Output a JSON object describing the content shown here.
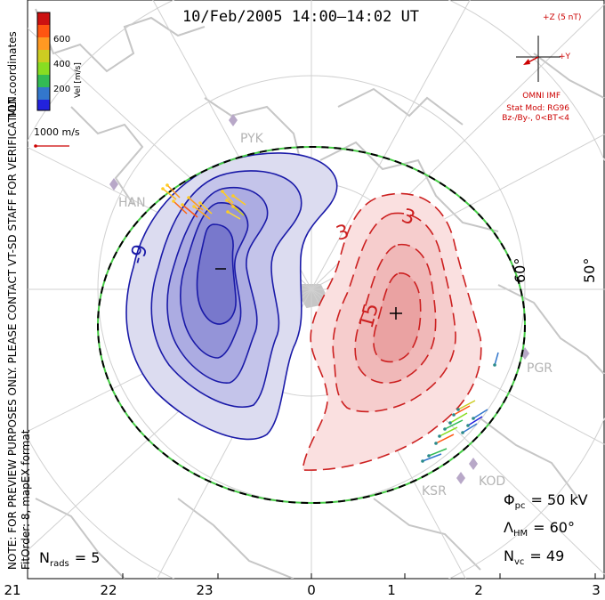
{
  "title": "10/Feb/2005 14:00–14:02 UT",
  "legend": {
    "title": "Vel [m/s]",
    "ticks": [
      "600",
      "400",
      "200"
    ],
    "colors": [
      "#cc1111",
      "#ff5511",
      "#ff9922",
      "#cccc22",
      "#88dd22",
      "#33bb55",
      "#3377cc",
      "#2222dd"
    ]
  },
  "mlt_label": "MLT coordinates",
  "scale_label": "1000 m/s",
  "side_note": "NOTE: FOR PREVIEW PURPOSES ONLY. PLEASE CONTACT VT-SD STAFF FOR VERIFICATION.",
  "fit_label": "FitOrder: 8, mapEX format",
  "imf": {
    "z_label": "+Z (5 nT)",
    "y_label": "+Y",
    "source": "OMNI IMF",
    "stat_mod": "Stat Mod: RG96",
    "condition": "Bz-/By-, 0<BT<4"
  },
  "stations": [
    "PYK",
    "HAN",
    "PGR",
    "KOD",
    "KSR"
  ],
  "contour_labels": {
    "neg": "-9",
    "pos_outer": "3",
    "pos_second": "3",
    "pos_inner": "15"
  },
  "lat_labels": [
    "60°",
    "50°"
  ],
  "stats": {
    "phi_sym": "Φ",
    "phi_sub": "pc",
    "phi_val": "= 50 kV",
    "lam_sym": "Λ",
    "lam_sub": "HM",
    "lam_val": "= 60°",
    "nvc_sym": "N",
    "nvc_sub": "vc",
    "nvc_val": "= 49",
    "nrads_sym": "N",
    "nrads_sub": "rads",
    "nrads_val": "= 5"
  },
  "mlt_axis": [
    "21",
    "22",
    "23",
    "0",
    "1",
    "2",
    "3"
  ]
}
